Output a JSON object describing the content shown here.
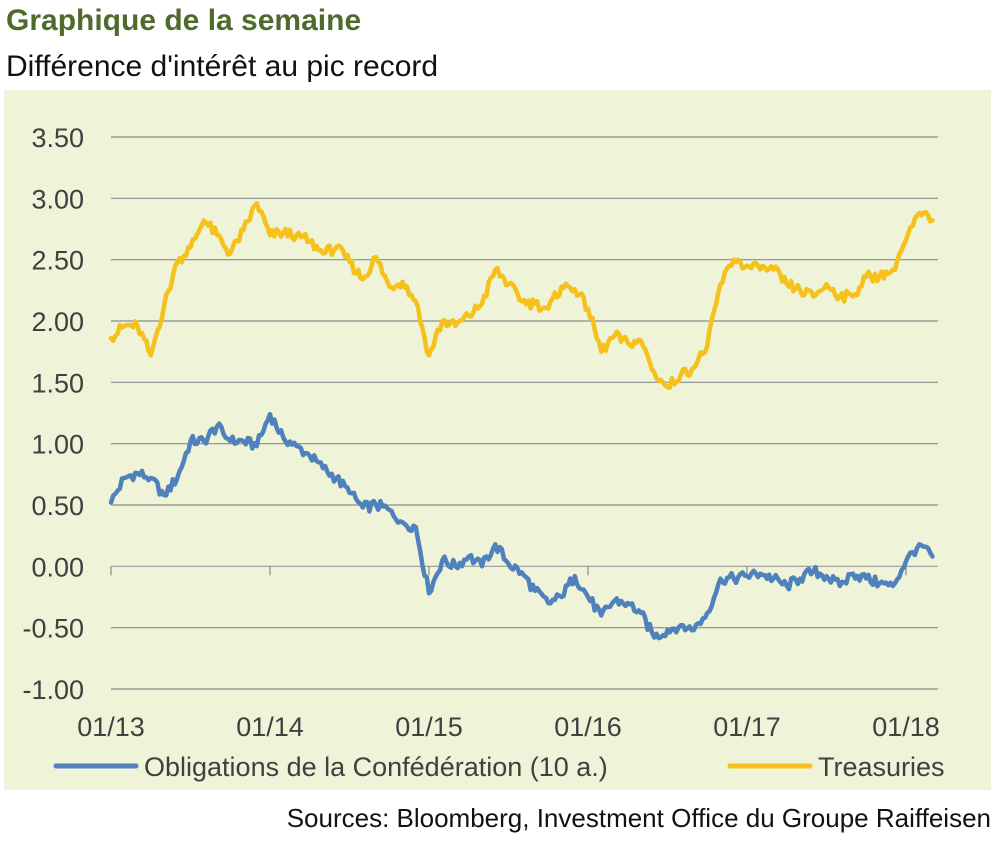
{
  "header": {
    "title": "Graphique de la semaine",
    "subtitle": "Différence d'intérêt au pic record"
  },
  "footer": {
    "source": "Sources: Bloomberg, Investment Office du Groupe Raiffeisen"
  },
  "chart_data": {
    "type": "line",
    "title": "",
    "xlabel": "",
    "ylabel": "",
    "ylim": [
      -1.0,
      3.5
    ],
    "yticks": [
      3.5,
      3.0,
      2.5,
      2.0,
      1.5,
      1.0,
      0.5,
      0.0,
      -0.5,
      -1.0
    ],
    "ytick_labels": [
      "3.50",
      "3.00",
      "2.50",
      "2.00",
      "1.50",
      "1.00",
      "0.50",
      "0.00",
      "-0.50",
      "-1.00"
    ],
    "xlim": [
      "2013-01",
      "2018-03"
    ],
    "xticks": [
      "2013-01",
      "2014-01",
      "2015-01",
      "2016-01",
      "2017-01",
      "2018-01"
    ],
    "xtick_labels": [
      "01/13",
      "01/14",
      "01/15",
      "01/16",
      "01/17",
      "01/18"
    ],
    "grid": "horizontal",
    "legend": "bottom",
    "background": "#eff3d8",
    "series": [
      {
        "name": "Obligations de la Confédération (10 a.)",
        "color": "#4f81bd",
        "points": [
          [
            "2013-01",
            0.52
          ],
          [
            "2013-02",
            0.72
          ],
          [
            "2013-03",
            0.76
          ],
          [
            "2013-04",
            0.72
          ],
          [
            "2013-05",
            0.58
          ],
          [
            "2013-06",
            0.72
          ],
          [
            "2013-07",
            1.02
          ],
          [
            "2013-08",
            1.02
          ],
          [
            "2013-09",
            1.14
          ],
          [
            "2013-10",
            1.02
          ],
          [
            "2013-11",
            1.02
          ],
          [
            "2013-12",
            0.98
          ],
          [
            "2014-01",
            1.24
          ],
          [
            "2014-02",
            1.05
          ],
          [
            "2014-03",
            0.98
          ],
          [
            "2014-04",
            0.9
          ],
          [
            "2014-05",
            0.8
          ],
          [
            "2014-06",
            0.72
          ],
          [
            "2014-07",
            0.6
          ],
          [
            "2014-08",
            0.48
          ],
          [
            "2014-09",
            0.5
          ],
          [
            "2014-10",
            0.46
          ],
          [
            "2014-11",
            0.36
          ],
          [
            "2014-12",
            0.32
          ],
          [
            "2015-01",
            -0.22
          ],
          [
            "2015-02",
            0.05
          ],
          [
            "2015-03",
            0.0
          ],
          [
            "2015-04",
            0.08
          ],
          [
            "2015-05",
            0.0
          ],
          [
            "2015-06",
            0.18
          ],
          [
            "2015-07",
            0.02
          ],
          [
            "2015-08",
            -0.05
          ],
          [
            "2015-09",
            -0.2
          ],
          [
            "2015-10",
            -0.3
          ],
          [
            "2015-11",
            -0.25
          ],
          [
            "2015-12",
            -0.08
          ],
          [
            "2016-01",
            -0.25
          ],
          [
            "2016-02",
            -0.4
          ],
          [
            "2016-03",
            -0.28
          ],
          [
            "2016-04",
            -0.3
          ],
          [
            "2016-05",
            -0.38
          ],
          [
            "2016-06",
            -0.58
          ],
          [
            "2016-07",
            -0.52
          ],
          [
            "2016-08",
            -0.48
          ],
          [
            "2016-09",
            -0.52
          ],
          [
            "2016-10",
            -0.38
          ],
          [
            "2016-11",
            -0.1
          ],
          [
            "2016-12",
            -0.1
          ],
          [
            "2017-01",
            -0.08
          ],
          [
            "2017-02",
            -0.06
          ],
          [
            "2017-03",
            -0.1
          ],
          [
            "2017-04",
            -0.16
          ],
          [
            "2017-05",
            -0.1
          ],
          [
            "2017-06",
            -0.04
          ],
          [
            "2017-07",
            -0.08
          ],
          [
            "2017-08",
            -0.16
          ],
          [
            "2017-09",
            -0.06
          ],
          [
            "2017-10",
            -0.1
          ],
          [
            "2017-11",
            -0.14
          ],
          [
            "2017-12",
            -0.16
          ],
          [
            "2018-01",
            0.04
          ],
          [
            "2018-02",
            0.18
          ],
          [
            "2018-03",
            0.08
          ]
        ]
      },
      {
        "name": "Treasuries",
        "color": "#f5c11a",
        "points": [
          [
            "2013-01",
            1.86
          ],
          [
            "2013-02",
            1.96
          ],
          [
            "2013-03",
            1.96
          ],
          [
            "2013-04",
            1.72
          ],
          [
            "2013-05",
            2.12
          ],
          [
            "2013-06",
            2.48
          ],
          [
            "2013-07",
            2.6
          ],
          [
            "2013-08",
            2.82
          ],
          [
            "2013-09",
            2.7
          ],
          [
            "2013-10",
            2.55
          ],
          [
            "2013-11",
            2.74
          ],
          [
            "2013-12",
            2.96
          ],
          [
            "2014-01",
            2.7
          ],
          [
            "2014-02",
            2.72
          ],
          [
            "2014-03",
            2.7
          ],
          [
            "2014-04",
            2.65
          ],
          [
            "2014-05",
            2.55
          ],
          [
            "2014-06",
            2.6
          ],
          [
            "2014-07",
            2.48
          ],
          [
            "2014-08",
            2.34
          ],
          [
            "2014-09",
            2.52
          ],
          [
            "2014-10",
            2.28
          ],
          [
            "2014-11",
            2.32
          ],
          [
            "2014-12",
            2.16
          ],
          [
            "2015-01",
            1.72
          ],
          [
            "2015-02",
            2.0
          ],
          [
            "2015-03",
            1.96
          ],
          [
            "2015-04",
            2.04
          ],
          [
            "2015-05",
            2.14
          ],
          [
            "2015-06",
            2.42
          ],
          [
            "2015-07",
            2.3
          ],
          [
            "2015-08",
            2.16
          ],
          [
            "2015-09",
            2.14
          ],
          [
            "2015-10",
            2.1
          ],
          [
            "2015-11",
            2.28
          ],
          [
            "2015-12",
            2.26
          ],
          [
            "2016-01",
            2.1
          ],
          [
            "2016-02",
            1.75
          ],
          [
            "2016-03",
            1.88
          ],
          [
            "2016-04",
            1.82
          ],
          [
            "2016-05",
            1.84
          ],
          [
            "2016-06",
            1.58
          ],
          [
            "2016-07",
            1.46
          ],
          [
            "2016-08",
            1.56
          ],
          [
            "2016-09",
            1.62
          ],
          [
            "2016-10",
            1.8
          ],
          [
            "2016-11",
            2.3
          ],
          [
            "2016-12",
            2.5
          ],
          [
            "2017-01",
            2.45
          ],
          [
            "2017-02",
            2.42
          ],
          [
            "2017-03",
            2.42
          ],
          [
            "2017-04",
            2.3
          ],
          [
            "2017-05",
            2.25
          ],
          [
            "2017-06",
            2.2
          ],
          [
            "2017-07",
            2.3
          ],
          [
            "2017-08",
            2.2
          ],
          [
            "2017-09",
            2.2
          ],
          [
            "2017-10",
            2.36
          ],
          [
            "2017-11",
            2.36
          ],
          [
            "2017-12",
            2.42
          ],
          [
            "2018-01",
            2.66
          ],
          [
            "2018-02",
            2.88
          ],
          [
            "2018-03",
            2.82
          ]
        ]
      }
    ]
  }
}
